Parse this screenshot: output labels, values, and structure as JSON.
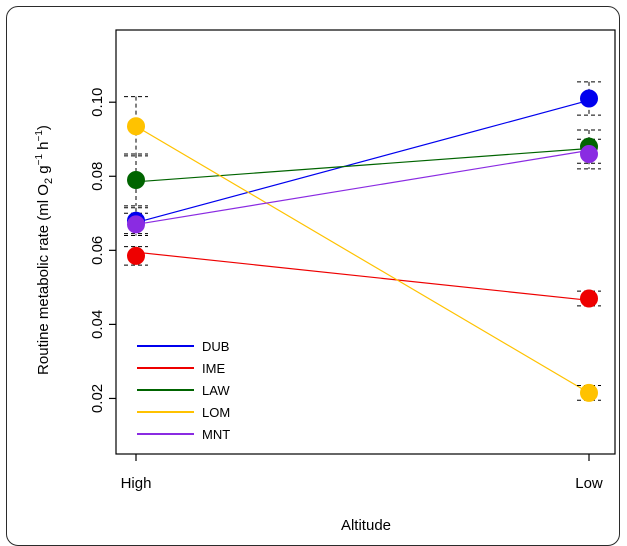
{
  "chart_data": {
    "type": "line",
    "categories": [
      "High",
      "Low"
    ],
    "xlabel": "Altitude",
    "ylabel": "Routine metabolic rate (ml O2 g⁻¹ h⁻¹)",
    "ylabel_parts": {
      "main": "Routine metabolic rate (ml O",
      "sub": "2",
      "mid": " g",
      "sup1": "−1",
      "mid2": " h",
      "sup2": "−1",
      "end": ")"
    },
    "ylim": [
      0.01,
      0.115
    ],
    "yticks": [
      0.02,
      0.04,
      0.06,
      0.08,
      0.1
    ],
    "ytick_labels": [
      "0.02",
      "0.04",
      "0.06",
      "0.08",
      "0.10"
    ],
    "grid": false,
    "legend_position": "bottom-left",
    "series": [
      {
        "name": "DUB",
        "color": "#0000ee",
        "points": [
          0.068,
          0.101
        ],
        "errors": [
          0.0035,
          0.0045
        ],
        "line": [
          0.0675,
          0.1005
        ]
      },
      {
        "name": "IME",
        "color": "#ee0000",
        "points": [
          0.0585,
          0.047
        ],
        "errors": [
          0.0025,
          0.002
        ],
        "line": [
          0.0595,
          0.0465
        ]
      },
      {
        "name": "LAW",
        "color": "#006400",
        "points": [
          0.079,
          0.088
        ],
        "errors": [
          0.007,
          0.0045
        ],
        "line": [
          0.0785,
          0.0875
        ]
      },
      {
        "name": "LOM",
        "color": "#ffc200",
        "points": [
          0.0935,
          0.0215
        ],
        "errors": [
          0.008,
          0.002
        ],
        "line": [
          0.0935,
          0.0215
        ]
      },
      {
        "name": "MNT",
        "color": "#8a2be2",
        "points": [
          0.067,
          0.086
        ],
        "errors": [
          0.003,
          0.004
        ],
        "line": [
          0.067,
          0.087
        ]
      }
    ]
  }
}
